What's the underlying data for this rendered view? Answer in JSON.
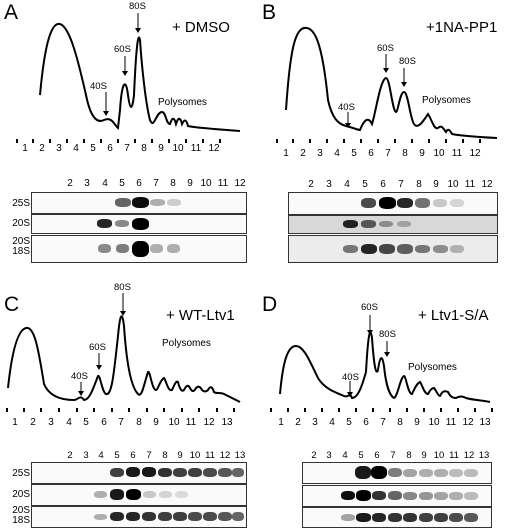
{
  "panels": {
    "A": {
      "letter": "A",
      "condition": "+ DMSO",
      "peaks": {
        "p40": "40S",
        "p60": "60S",
        "p80": "80S"
      },
      "polysomes": "Polysomes",
      "fractions": [
        "1",
        "2",
        "3",
        "4",
        "5",
        "6",
        "7",
        "8",
        "9",
        "10",
        "11",
        "12"
      ],
      "lane_labels": [
        "2",
        "3",
        "4",
        "5",
        "6",
        "7",
        "8",
        "9",
        "10",
        "11",
        "12"
      ],
      "rows": [
        {
          "label": "25S"
        },
        {
          "label": "20S"
        },
        {
          "label": "20S\n18S"
        }
      ]
    },
    "B": {
      "letter": "B",
      "condition": "+1NA-PP1",
      "peaks": {
        "p40": "40S",
        "p60": "60S",
        "p80": "80S"
      },
      "polysomes": "Polysomes",
      "fractions": [
        "1",
        "2",
        "3",
        "4",
        "5",
        "6",
        "7",
        "8",
        "9",
        "10",
        "11",
        "12"
      ],
      "lane_labels": [
        "2",
        "3",
        "4",
        "5",
        "6",
        "7",
        "8",
        "9",
        "10",
        "11",
        "12"
      ]
    },
    "C": {
      "letter": "C",
      "condition": "+ WT-Ltv1",
      "peaks": {
        "p40": "40S",
        "p60": "60S",
        "p80": "80S"
      },
      "polysomes": "Polysomes",
      "fractions": [
        "1",
        "2",
        "3",
        "4",
        "5",
        "6",
        "7",
        "8",
        "9",
        "10",
        "11",
        "12",
        "13"
      ],
      "lane_labels": [
        "2",
        "3",
        "4",
        "5",
        "6",
        "7",
        "8",
        "9",
        "10",
        "11",
        "12",
        "13"
      ],
      "rows": [
        {
          "label": "25S"
        },
        {
          "label": "20S"
        },
        {
          "label": "20S\n18S"
        }
      ]
    },
    "D": {
      "letter": "D",
      "condition": "+ Ltv1-S/A",
      "peaks": {
        "p40": "40S",
        "p60": "60S",
        "p80": "80S"
      },
      "polysomes": "Polysomes",
      "fractions": [
        "1",
        "2",
        "3",
        "4",
        "5",
        "6",
        "7",
        "8",
        "9",
        "10",
        "11",
        "12",
        "13"
      ],
      "lane_labels": [
        "2",
        "3",
        "4",
        "5",
        "6",
        "7",
        "8",
        "9",
        "10",
        "11",
        "12",
        "13"
      ]
    }
  }
}
